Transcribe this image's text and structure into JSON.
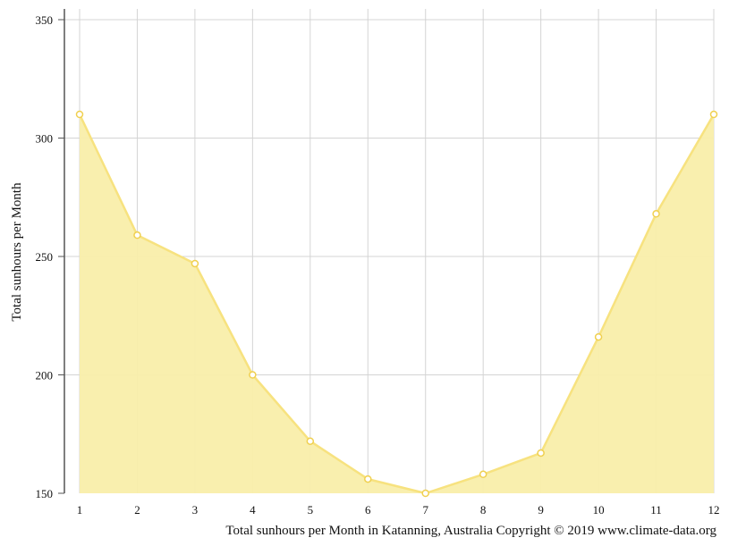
{
  "chart_data": {
    "type": "area",
    "x": [
      1,
      2,
      3,
      4,
      5,
      6,
      7,
      8,
      9,
      10,
      11,
      12
    ],
    "y": [
      310,
      259,
      247,
      200,
      172,
      156,
      150,
      158,
      167,
      216,
      268,
      310
    ],
    "xlabel": "",
    "ylabel": "Total sunhours per Month",
    "ylim": [
      150,
      350
    ],
    "yticks": [
      150,
      200,
      250,
      300,
      350
    ],
    "xticks": [
      "1",
      "2",
      "3",
      "4",
      "5",
      "6",
      "7",
      "8",
      "9",
      "10",
      "11",
      "12"
    ],
    "grid": true,
    "caption": "Total sunhours per Month in Katanning, Australia Copyright © 2019 www.climate-data.org",
    "colors": {
      "fill": "#f9eeaa",
      "line": "#f7e27f",
      "grid": "#d4d4d4",
      "axis": "#555555",
      "marker_fill": "#ffffff",
      "marker_stroke": "#f0d050"
    }
  }
}
